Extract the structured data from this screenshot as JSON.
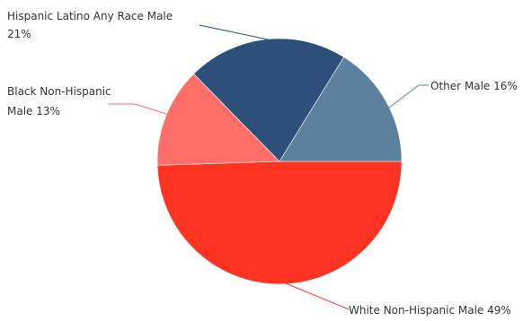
{
  "chart_data": {
    "type": "pie",
    "title": "",
    "legend": "none",
    "slices": [
      {
        "label_lines": [
          "White Non-Hispanic Male 49%"
        ],
        "value": 49,
        "color": "#ff3322"
      },
      {
        "label_lines": [
          "Black Non-Hispanic",
          "Male 13%"
        ],
        "value": 13,
        "color": "#ff6e68"
      },
      {
        "label_lines": [
          "Hispanic Latino Any Race Male",
          "21%"
        ],
        "value": 21,
        "color": "#2c5079"
      },
      {
        "label_lines": [
          "Other Male 16%"
        ],
        "value": 16,
        "color": "#5b819f"
      }
    ]
  }
}
